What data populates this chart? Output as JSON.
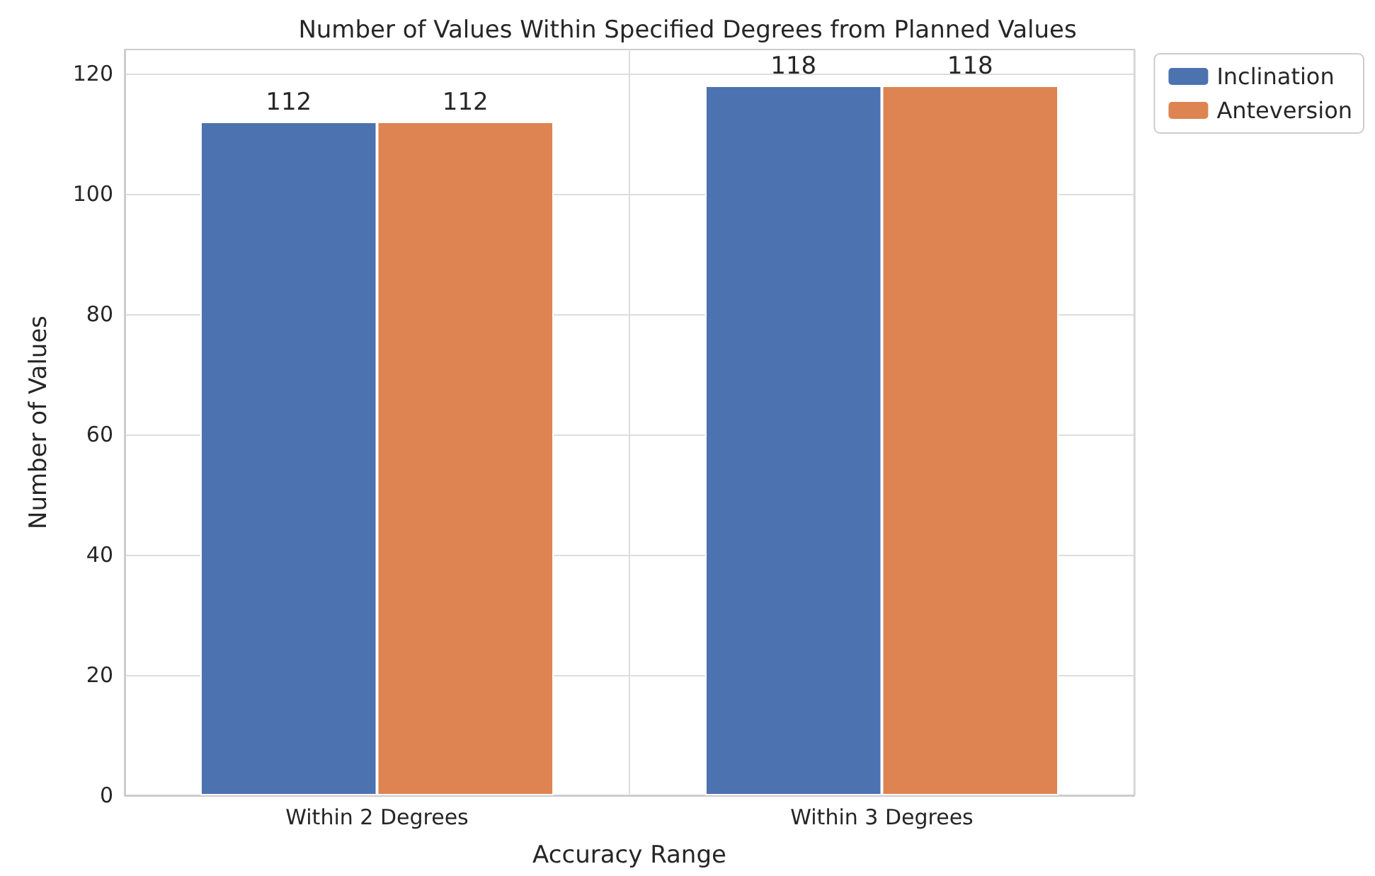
{
  "chart_data": {
    "type": "bar",
    "title": "Number of Values Within Specified Degrees from Planned Values",
    "xlabel": "Accuracy Range",
    "ylabel": "Number of Values",
    "categories": [
      "Within 2 Degrees",
      "Within 3 Degrees"
    ],
    "series": [
      {
        "name": "Inclination",
        "color": "#4c72b0",
        "values": [
          112,
          118
        ]
      },
      {
        "name": "Anteversion",
        "color": "#dd8452",
        "values": [
          112,
          118
        ]
      }
    ],
    "ylim": [
      0,
      124
    ],
    "yticks": [
      0,
      20,
      40,
      60,
      80,
      100,
      120
    ],
    "grid": true,
    "legend": "top right",
    "data_labels": true
  }
}
